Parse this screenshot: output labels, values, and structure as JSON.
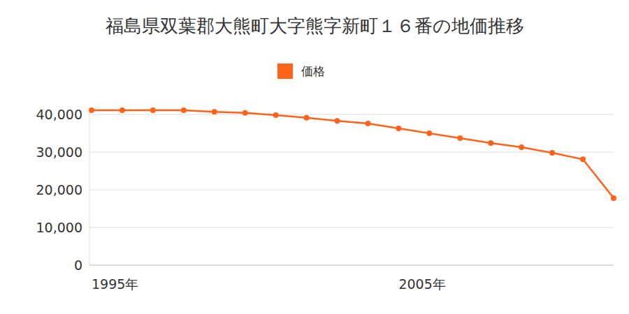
{
  "chart_data": {
    "type": "line",
    "title": "福島県双葉郡大熊町大字熊字新町１６番の地価推移",
    "categories": [
      "1995年",
      null,
      null,
      null,
      null,
      null,
      null,
      null,
      null,
      null,
      "2005年",
      null,
      null,
      null,
      null,
      null,
      null,
      null
    ],
    "series": [
      {
        "name": "価格",
        "color": "#ff6319",
        "marker": "circle",
        "values": [
          41100,
          41100,
          41100,
          41100,
          40700,
          40400,
          39800,
          39100,
          38300,
          37600,
          36300,
          35000,
          33700,
          32400,
          31300,
          29800,
          28100,
          17800
        ]
      }
    ],
    "ylim": [
      0,
      42000
    ],
    "yticks": [
      0,
      {
        "value": 10000,
        "label": "10,000"
      },
      {
        "value": 20000,
        "label": "20,000"
      },
      {
        "value": 30000,
        "label": "30,000"
      },
      {
        "value": 40000,
        "label": "40,000"
      }
    ],
    "grid": true,
    "legend": "top"
  }
}
